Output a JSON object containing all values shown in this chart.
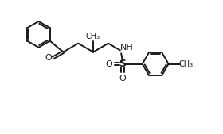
{
  "bg_color": "#ffffff",
  "line_color": "#1a1a1a",
  "line_width": 1.4,
  "fig_width": 2.8,
  "fig_height": 1.69,
  "dpi": 100,
  "xlim": [
    0.0,
    10.5
  ],
  "ylim": [
    0.0,
    6.0
  ]
}
